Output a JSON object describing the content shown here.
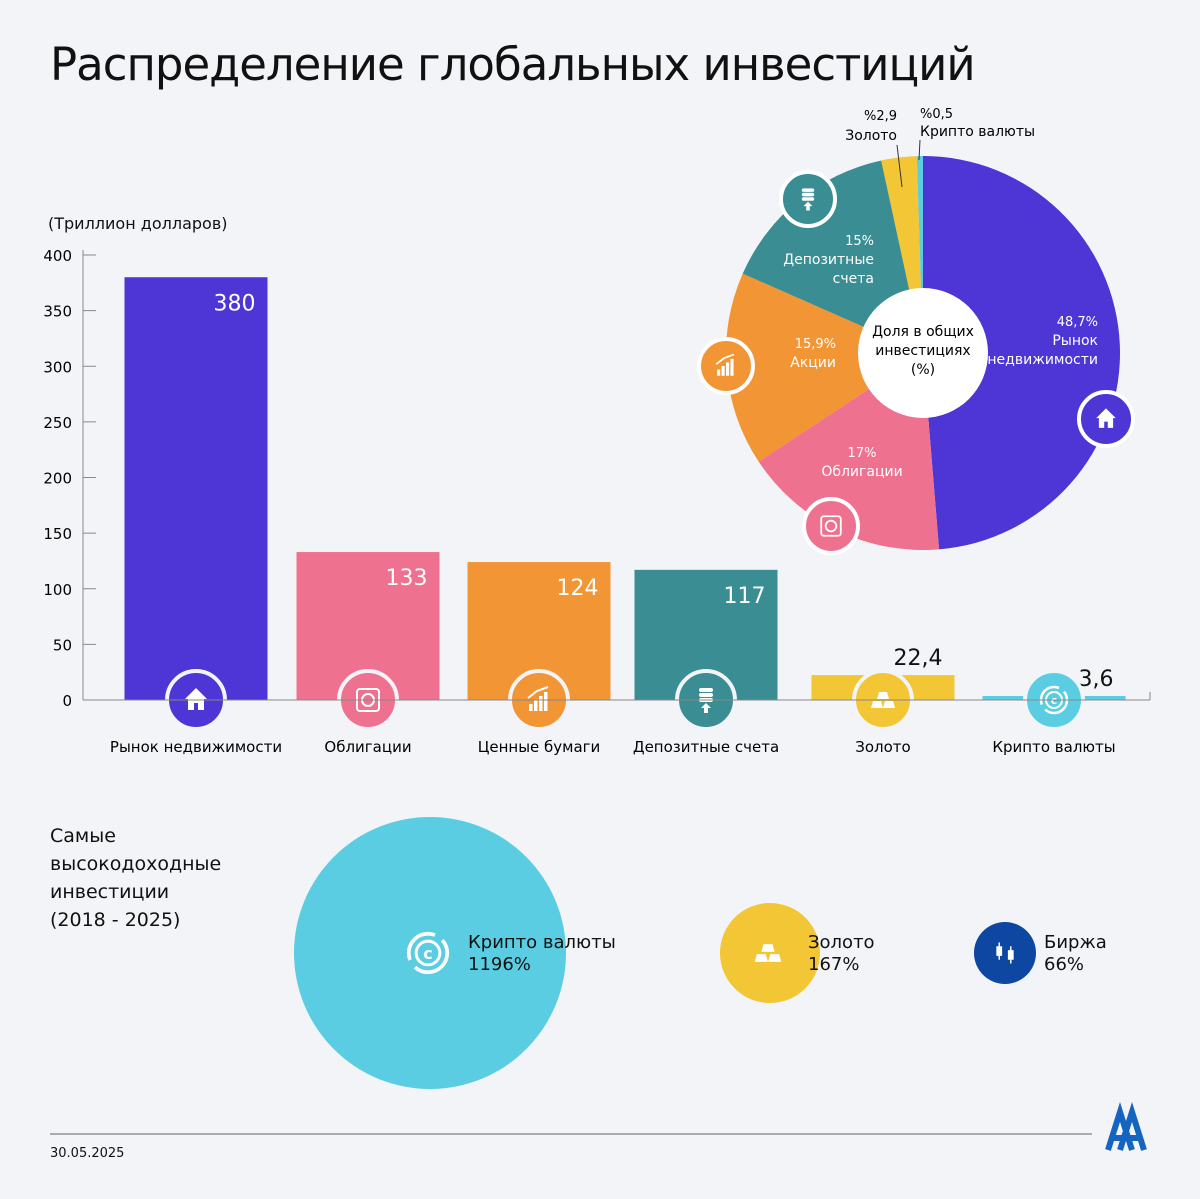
{
  "title": "Распределение глобальных инвестиций",
  "date": "30.05.2025",
  "logo_text": "AA",
  "chart_data": [
    {
      "type": "bar",
      "ylabel": "(Триллион долларов)",
      "ylim": [
        0,
        400
      ],
      "yticks": [
        0,
        50,
        100,
        150,
        200,
        250,
        300,
        350,
        400
      ],
      "categories": [
        "Рынок недвижимости",
        "Облигации",
        "Ценные бумаги",
        "Депозитные счета",
        "Золото",
        "Крипто валюты"
      ],
      "values": [
        380,
        133,
        124,
        117,
        22.4,
        3.6
      ],
      "value_labels": [
        "380",
        "133",
        "124",
        "117",
        "22,4",
        "3,6"
      ],
      "colors": [
        "#4d35d6",
        "#ef7190",
        "#f29535",
        "#3a8d93",
        "#f2c634",
        "#5bcde2"
      ],
      "icons": [
        "house-icon",
        "bond-safe-icon",
        "growth-chart-icon",
        "deposit-coins-icon",
        "gold-bars-icon",
        "crypto-coin-icon"
      ]
    },
    {
      "type": "pie",
      "title": "Доля в общих инвестициях (%)",
      "center_lines": [
        "Доля в общих",
        "инвестициях",
        "(%)"
      ],
      "slices": [
        {
          "label": "Рынок недвижимости",
          "label_lines": [
            "Рынок",
            "недвижимости"
          ],
          "value": 48.7,
          "value_label": "48,7%",
          "color": "#4d35d6",
          "icon": "house-icon"
        },
        {
          "label": "Облигации",
          "label_lines": [
            "Облигации"
          ],
          "value": 17,
          "value_label": "17%",
          "color": "#ef7190",
          "icon": "bond-safe-icon"
        },
        {
          "label": "Акции",
          "label_lines": [
            "Акции"
          ],
          "value": 15.9,
          "value_label": "15,9%",
          "color": "#f29535",
          "icon": "growth-chart-icon"
        },
        {
          "label": "Депозитные счета",
          "label_lines": [
            "Депозитные",
            "счета"
          ],
          "value": 15,
          "value_label": "15%",
          "color": "#3a8d93",
          "icon": "deposit-coins-icon"
        },
        {
          "label": "Золото",
          "label_lines": [
            "Золото"
          ],
          "value": 2.9,
          "value_label": "%2,9",
          "color": "#f2c634"
        },
        {
          "label": "Крипто валюты",
          "label_lines": [
            "Крипто валюты"
          ],
          "value": 0.5,
          "value_label": "%0,5",
          "color": "#5bcde2"
        }
      ]
    },
    {
      "type": "bubble",
      "title_lines": [
        "Самые",
        "высокодоходные",
        "инвестиции",
        "(2018 - 2025)"
      ],
      "items": [
        {
          "label": "Крипто валюты",
          "value": 1196,
          "value_label": "1196%",
          "color": "#5bcde2",
          "icon": "crypto-coin-icon"
        },
        {
          "label": "Золото",
          "value": 167,
          "value_label": "167%",
          "color": "#f2c634",
          "icon": "gold-bars-icon"
        },
        {
          "label": "Биржа",
          "value": 66,
          "value_label": "66%",
          "color": "#0d47a1",
          "icon": "candlestick-icon"
        }
      ]
    }
  ]
}
